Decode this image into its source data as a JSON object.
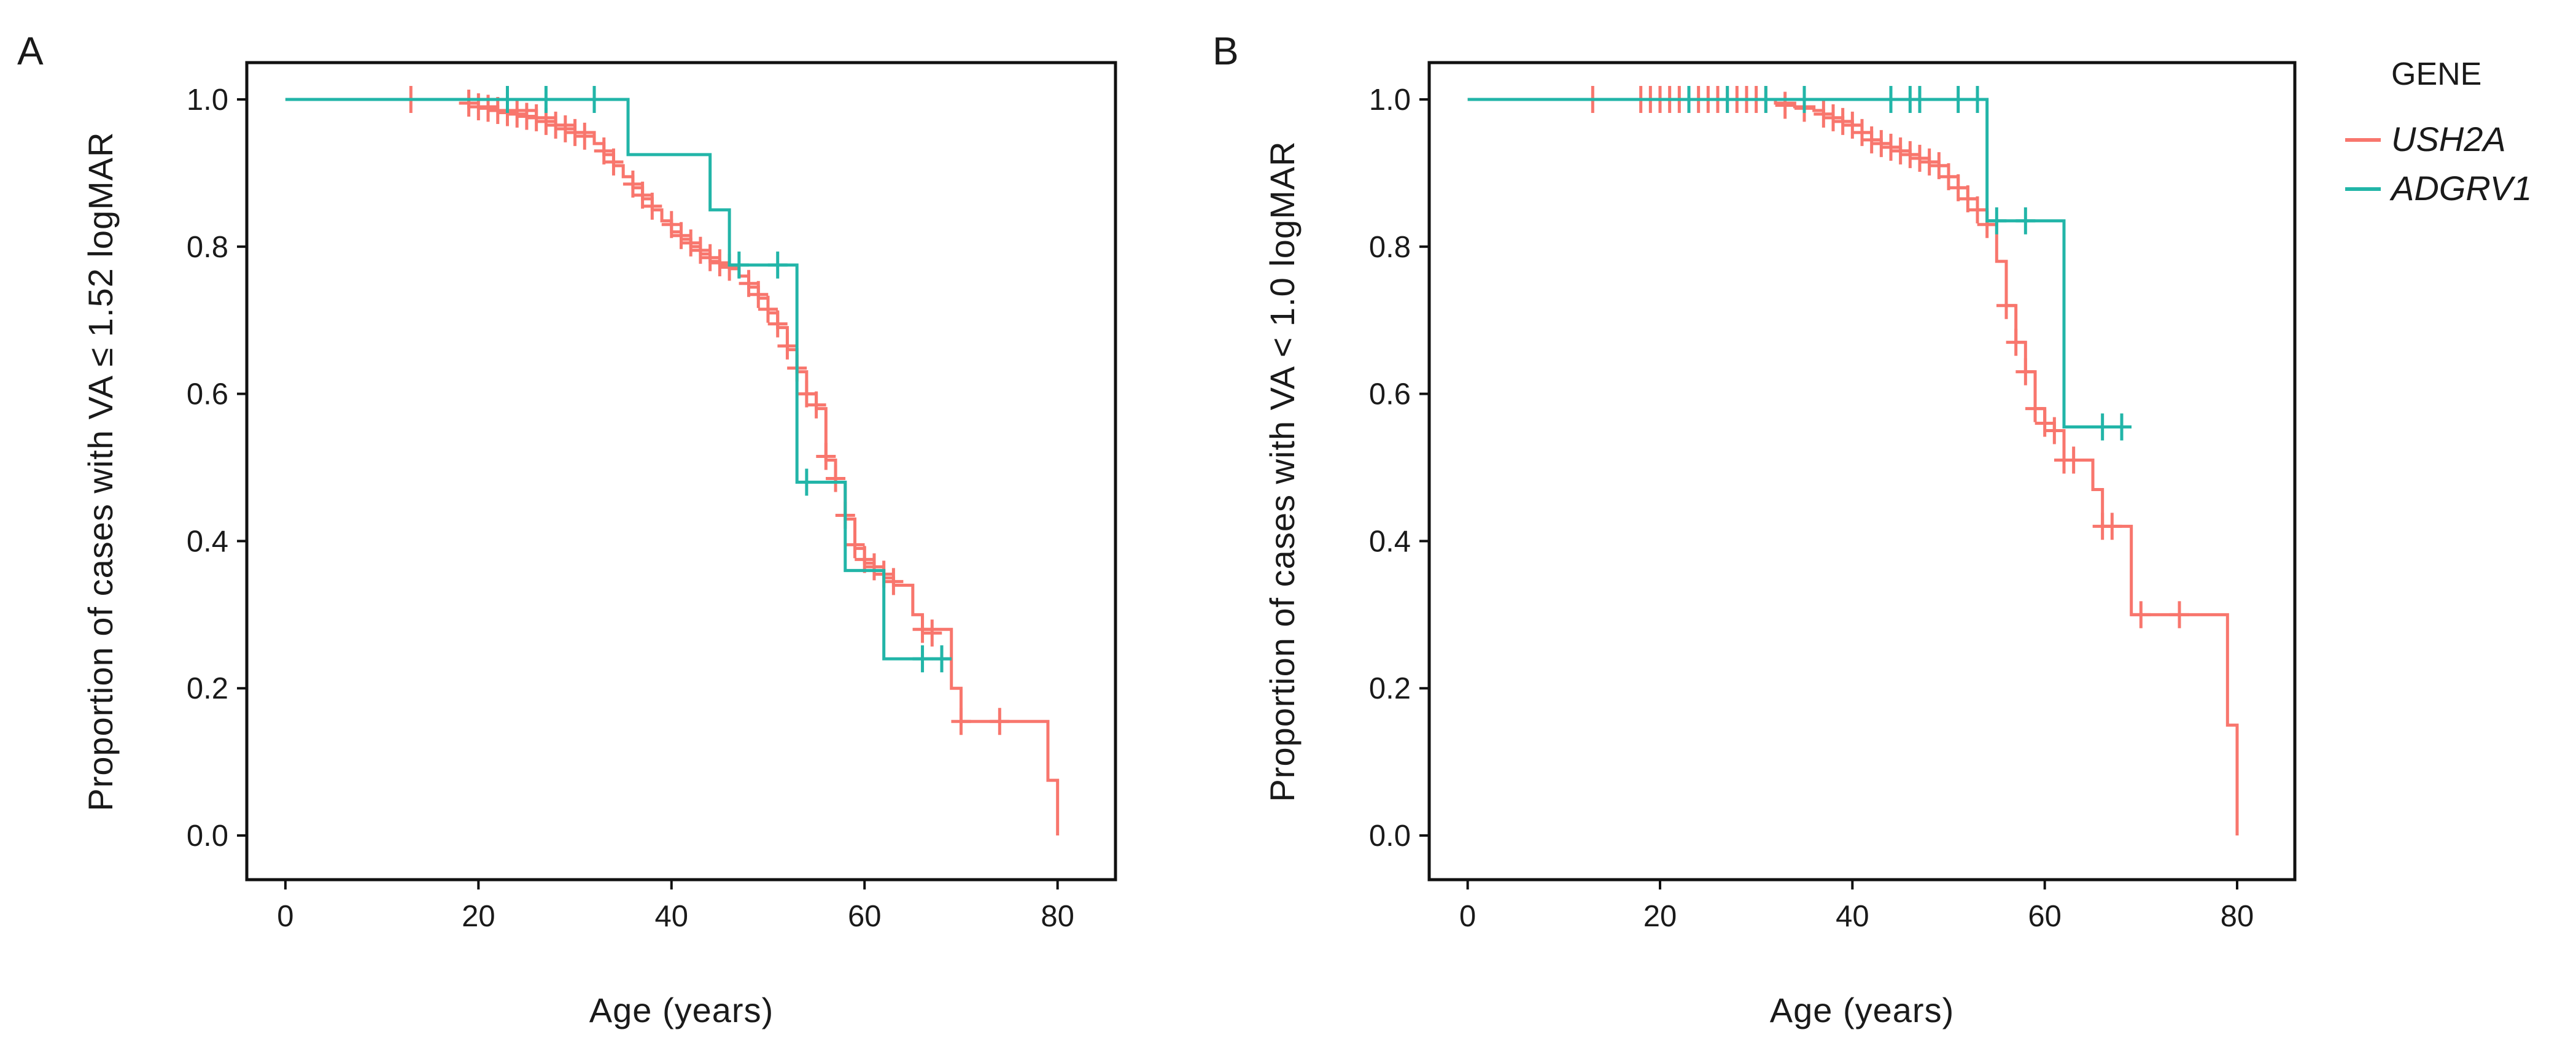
{
  "colors": {
    "USH2A": "#F8766D",
    "ADGRV1": "#22B5A8"
  },
  "legend": {
    "title": "GENE",
    "entries": [
      {
        "key": "USH2A",
        "label": "USH2A"
      },
      {
        "key": "ADGRV1",
        "label": "ADGRV1"
      }
    ]
  },
  "chart_data": [
    {
      "type": "line",
      "subtype": "kaplan-meier step",
      "panel": "A",
      "xlabel": "Age (years)",
      "ylabel": "Proportion of cases with VA ≤ 1.52 logMAR",
      "xlim": [
        -4,
        86
      ],
      "ylim": [
        -0.06,
        1.05
      ],
      "xticks": [
        0,
        20,
        40,
        60,
        80
      ],
      "xtick_labels": [
        "0",
        "20",
        "40",
        "60",
        "80"
      ],
      "yticks": [
        0.0,
        0.2,
        0.4,
        0.6,
        0.8,
        1.0
      ],
      "ytick_labels": [
        "0.0",
        "0.2",
        "0.4",
        "0.6",
        "0.8",
        "1.0"
      ],
      "series": [
        {
          "name": "USH2A",
          "steps": [
            [
              0,
              1.0
            ],
            [
              19,
              0.99
            ],
            [
              22,
              0.985
            ],
            [
              26,
              0.975
            ],
            [
              28,
              0.965
            ],
            [
              30,
              0.955
            ],
            [
              32,
              0.94
            ],
            [
              33,
              0.925
            ],
            [
              34,
              0.91
            ],
            [
              35,
              0.895
            ],
            [
              36,
              0.88
            ],
            [
              37,
              0.865
            ],
            [
              38,
              0.85
            ],
            [
              39,
              0.835
            ],
            [
              40,
              0.82
            ],
            [
              41,
              0.81
            ],
            [
              42,
              0.8
            ],
            [
              43,
              0.79
            ],
            [
              44,
              0.78
            ],
            [
              45,
              0.775
            ],
            [
              46,
              0.77
            ],
            [
              47,
              0.76
            ],
            [
              48,
              0.745
            ],
            [
              49,
              0.73
            ],
            [
              50,
              0.71
            ],
            [
              51,
              0.69
            ],
            [
              52,
              0.66
            ],
            [
              53,
              0.63
            ],
            [
              54,
              0.6
            ],
            [
              55,
              0.58
            ],
            [
              56,
              0.51
            ],
            [
              57,
              0.48
            ],
            [
              58,
              0.43
            ],
            [
              59,
              0.39
            ],
            [
              60,
              0.37
            ],
            [
              61,
              0.36
            ],
            [
              62,
              0.35
            ],
            [
              63,
              0.34
            ],
            [
              65,
              0.3
            ],
            [
              66,
              0.28
            ],
            [
              69,
              0.2
            ],
            [
              70,
              0.155
            ],
            [
              79,
              0.075
            ],
            [
              80,
              0.0
            ]
          ],
          "end": 80,
          "censors": [
            [
              13,
              1.0
            ],
            [
              19,
              0.995
            ],
            [
              20,
              0.99
            ],
            [
              21,
              0.988
            ],
            [
              22,
              0.985
            ],
            [
              23,
              0.982
            ],
            [
              24,
              0.98
            ],
            [
              25,
              0.977
            ],
            [
              26,
              0.975
            ],
            [
              27,
              0.97
            ],
            [
              28,
              0.965
            ],
            [
              29,
              0.96
            ],
            [
              30,
              0.955
            ],
            [
              31,
              0.95
            ],
            [
              33,
              0.93
            ],
            [
              34,
              0.915
            ],
            [
              36,
              0.885
            ],
            [
              37,
              0.87
            ],
            [
              38,
              0.855
            ],
            [
              40,
              0.83
            ],
            [
              41,
              0.815
            ],
            [
              42,
              0.805
            ],
            [
              43,
              0.795
            ],
            [
              44,
              0.785
            ],
            [
              45,
              0.778
            ],
            [
              46,
              0.772
            ],
            [
              48,
              0.75
            ],
            [
              49,
              0.735
            ],
            [
              50,
              0.715
            ],
            [
              51,
              0.695
            ],
            [
              52,
              0.665
            ],
            [
              53,
              0.635
            ],
            [
              54,
              0.6
            ],
            [
              55,
              0.585
            ],
            [
              56,
              0.515
            ],
            [
              57,
              0.485
            ],
            [
              58,
              0.435
            ],
            [
              59,
              0.395
            ],
            [
              60,
              0.375
            ],
            [
              61,
              0.365
            ],
            [
              62,
              0.355
            ],
            [
              63,
              0.345
            ],
            [
              66,
              0.28
            ],
            [
              67,
              0.275
            ],
            [
              70,
              0.155
            ],
            [
              74,
              0.155
            ]
          ]
        },
        {
          "name": "ADGRV1",
          "steps": [
            [
              0,
              1.0
            ],
            [
              35.5,
              0.925
            ],
            [
              44,
              0.85
            ],
            [
              46,
              0.775
            ],
            [
              53,
              0.48
            ],
            [
              54,
              0.48
            ],
            [
              58,
              0.36
            ],
            [
              62,
              0.24
            ],
            [
              69,
              0.24
            ]
          ],
          "end": 69,
          "censors": [
            [
              23,
              1.0
            ],
            [
              27,
              1.0
            ],
            [
              32,
              1.0
            ],
            [
              47,
              0.775
            ],
            [
              51,
              0.775
            ],
            [
              54,
              0.48
            ],
            [
              66,
              0.24
            ],
            [
              68,
              0.24
            ]
          ]
        }
      ]
    },
    {
      "type": "line",
      "subtype": "kaplan-meier step",
      "panel": "B",
      "xlabel": "Age (years)",
      "ylabel": "Proportion of cases with VA < 1.0 logMAR",
      "xlim": [
        -4,
        86
      ],
      "ylim": [
        -0.06,
        1.05
      ],
      "xticks": [
        0,
        20,
        40,
        60,
        80
      ],
      "xtick_labels": [
        "0",
        "20",
        "40",
        "60",
        "80"
      ],
      "yticks": [
        0.0,
        0.2,
        0.4,
        0.6,
        0.8,
        1.0
      ],
      "ytick_labels": [
        "0.0",
        "0.2",
        "0.4",
        "0.6",
        "0.8",
        "1.0"
      ],
      "series": [
        {
          "name": "USH2A",
          "steps": [
            [
              0,
              1.0
            ],
            [
              32,
              0.995
            ],
            [
              34,
              0.99
            ],
            [
              36,
              0.985
            ],
            [
              37,
              0.98
            ],
            [
              38,
              0.975
            ],
            [
              39,
              0.97
            ],
            [
              40,
              0.965
            ],
            [
              41,
              0.955
            ],
            [
              42,
              0.945
            ],
            [
              43,
              0.94
            ],
            [
              44,
              0.935
            ],
            [
              45,
              0.93
            ],
            [
              46,
              0.925
            ],
            [
              47,
              0.92
            ],
            [
              48,
              0.915
            ],
            [
              49,
              0.91
            ],
            [
              50,
              0.895
            ],
            [
              51,
              0.88
            ],
            [
              52,
              0.865
            ],
            [
              53,
              0.85
            ],
            [
              54,
              0.83
            ],
            [
              55,
              0.78
            ],
            [
              56,
              0.72
            ],
            [
              57,
              0.67
            ],
            [
              58,
              0.63
            ],
            [
              59,
              0.58
            ],
            [
              60,
              0.56
            ],
            [
              61,
              0.55
            ],
            [
              62,
              0.51
            ],
            [
              64,
              0.51
            ],
            [
              65,
              0.47
            ],
            [
              66,
              0.42
            ],
            [
              67,
              0.42
            ],
            [
              68,
              0.42
            ],
            [
              69,
              0.3
            ],
            [
              79,
              0.15
            ],
            [
              80,
              0.0
            ]
          ],
          "end": 80,
          "censors": [
            [
              13,
              1.0
            ],
            [
              18,
              1.0
            ],
            [
              19,
              1.0
            ],
            [
              20,
              1.0
            ],
            [
              21,
              1.0
            ],
            [
              22,
              1.0
            ],
            [
              23,
              1.0
            ],
            [
              24,
              1.0
            ],
            [
              25,
              1.0
            ],
            [
              26,
              1.0
            ],
            [
              27,
              1.0
            ],
            [
              28,
              1.0
            ],
            [
              29,
              1.0
            ],
            [
              30,
              1.0
            ],
            [
              31,
              1.0
            ],
            [
              33,
              0.992
            ],
            [
              35,
              0.988
            ],
            [
              37,
              0.98
            ],
            [
              38,
              0.975
            ],
            [
              39,
              0.97
            ],
            [
              40,
              0.965
            ],
            [
              41,
              0.955
            ],
            [
              42,
              0.945
            ],
            [
              43,
              0.94
            ],
            [
              44,
              0.935
            ],
            [
              45,
              0.93
            ],
            [
              46,
              0.925
            ],
            [
              47,
              0.92
            ],
            [
              48,
              0.915
            ],
            [
              49,
              0.91
            ],
            [
              50,
              0.895
            ],
            [
              51,
              0.88
            ],
            [
              52,
              0.865
            ],
            [
              53,
              0.85
            ],
            [
              54,
              0.83
            ],
            [
              56,
              0.72
            ],
            [
              57,
              0.67
            ],
            [
              58,
              0.63
            ],
            [
              59,
              0.58
            ],
            [
              60,
              0.56
            ],
            [
              61,
              0.55
            ],
            [
              62,
              0.51
            ],
            [
              63,
              0.51
            ],
            [
              66,
              0.42
            ],
            [
              67,
              0.42
            ],
            [
              70,
              0.3
            ],
            [
              74,
              0.3
            ]
          ]
        },
        {
          "name": "ADGRV1",
          "steps": [
            [
              0,
              1.0
            ],
            [
              54,
              0.835
            ],
            [
              62,
              0.555
            ],
            [
              69,
              0.555
            ]
          ],
          "end": 69,
          "censors": [
            [
              23,
              1.0
            ],
            [
              27,
              1.0
            ],
            [
              31,
              1.0
            ],
            [
              35,
              1.0
            ],
            [
              44,
              1.0
            ],
            [
              46,
              1.0
            ],
            [
              47,
              1.0
            ],
            [
              51,
              1.0
            ],
            [
              53,
              1.0
            ],
            [
              55,
              0.835
            ],
            [
              58,
              0.835
            ],
            [
              66,
              0.555
            ],
            [
              68,
              0.555
            ]
          ]
        }
      ]
    }
  ]
}
